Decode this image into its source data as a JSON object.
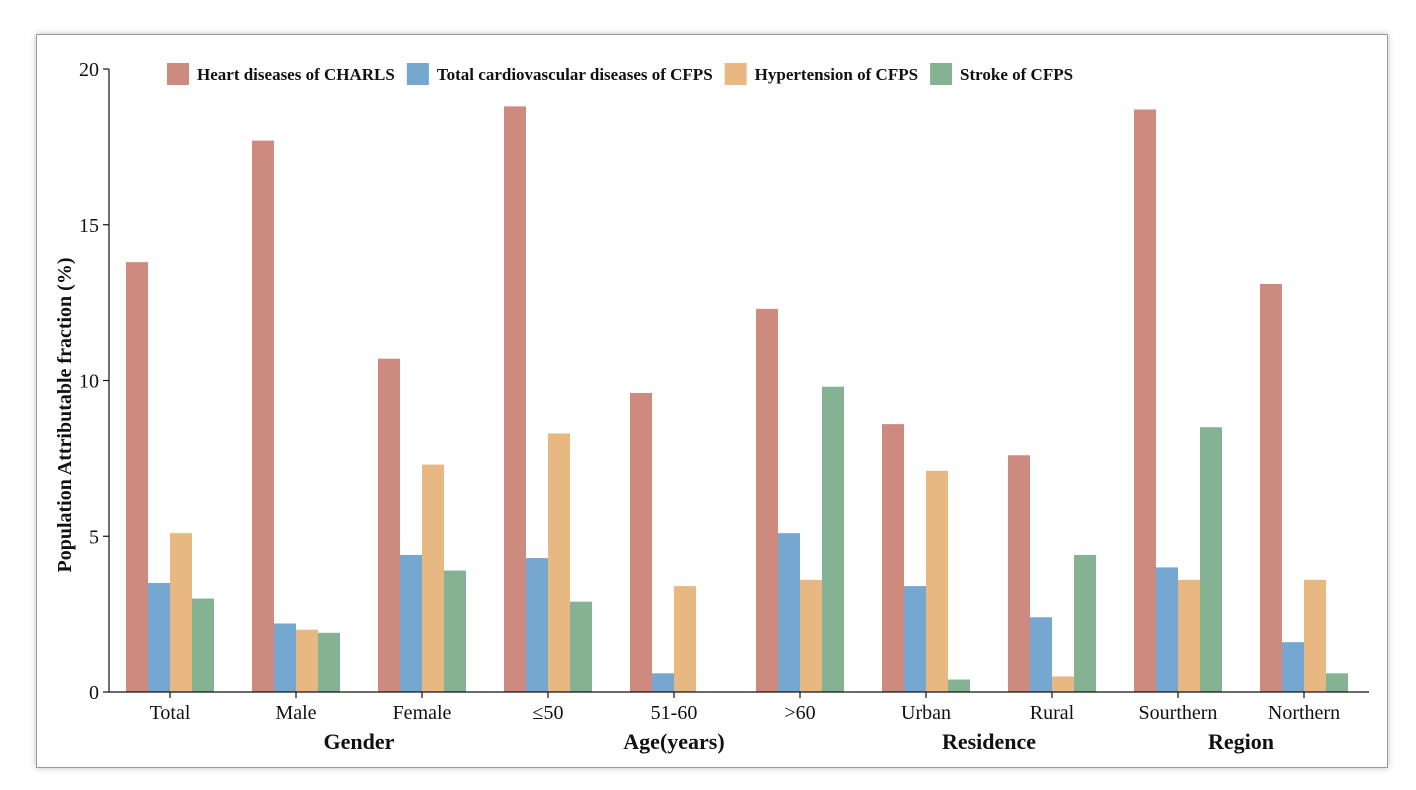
{
  "chart_data": {
    "type": "bar",
    "ylabel": "Population Attributable fraction (%)",
    "xlabel": "",
    "ylim": [
      0,
      20
    ],
    "yticks": [
      "0",
      "5",
      "10",
      "15",
      "20"
    ],
    "ytick_values": [
      0,
      5,
      10,
      15,
      20
    ],
    "legend_position": "top",
    "categories": [
      "Total",
      "Male",
      "Female",
      "≤50",
      "51-60",
      ">60",
      "Urban",
      "Rural",
      "Sourthern",
      "Northern"
    ],
    "groups": [
      {
        "label": "Gender",
        "categories": [
          "Male",
          "Female"
        ]
      },
      {
        "label": "Age(years)",
        "categories": [
          "≤50",
          "51-60",
          ">60"
        ]
      },
      {
        "label": "Residence",
        "categories": [
          "Urban",
          "Rural"
        ]
      },
      {
        "label": "Region",
        "categories": [
          "Sourthern",
          "Northern"
        ]
      }
    ],
    "series": [
      {
        "name": "Heart diseases of CHARLS",
        "color": "#cd8b80",
        "values": [
          13.8,
          17.7,
          10.7,
          18.8,
          9.6,
          12.3,
          8.6,
          7.6,
          18.7,
          13.1
        ]
      },
      {
        "name": "Total cardiovascular diseases of CFPS",
        "color": "#75a7d0",
        "values": [
          3.5,
          2.2,
          4.4,
          4.3,
          0.6,
          5.1,
          3.4,
          2.4,
          4.0,
          1.6
        ]
      },
      {
        "name": "Hypertension of CFPS",
        "color": "#e8b882",
        "values": [
          5.1,
          2.0,
          7.3,
          8.3,
          3.4,
          3.6,
          7.1,
          0.5,
          3.6,
          3.6
        ]
      },
      {
        "name": "Stroke of CFPS",
        "color": "#85b293",
        "values": [
          3.0,
          1.9,
          3.9,
          2.9,
          0.0,
          9.8,
          0.4,
          4.4,
          8.5,
          0.6
        ]
      }
    ]
  }
}
